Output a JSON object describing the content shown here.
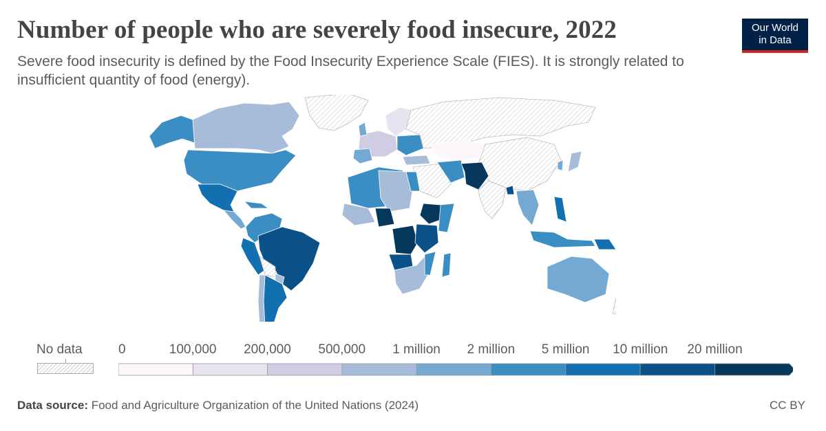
{
  "header": {
    "title": "Number of people who are severely food insecure, 2022",
    "subtitle": "Severe food insecurity is defined by the Food Insecurity Experience Scale (FIES). It is strongly related to insufficient quantity of food (energy)."
  },
  "logo": {
    "line1": "Our World",
    "line2": "in Data"
  },
  "legend": {
    "no_data_label": "No data",
    "bins": [
      {
        "label": "0",
        "color": "#fdf6fb"
      },
      {
        "label": "100,000",
        "color": "#e7e3f0"
      },
      {
        "label": "200,000",
        "color": "#cfcde3"
      },
      {
        "label": "500,000",
        "color": "#a7bcd9"
      },
      {
        "label": "1 million",
        "color": "#73a9d2"
      },
      {
        "label": "2 million",
        "color": "#3b8ec3"
      },
      {
        "label": "5 million",
        "color": "#126fb0"
      },
      {
        "label": "10 million",
        "color": "#0b5189"
      },
      {
        "label": "20 million",
        "color": "#06375d"
      }
    ]
  },
  "footer": {
    "source_label": "Data source:",
    "source_text": "Food and Agriculture Organization of the United Nations (2024)",
    "license": "CC BY"
  },
  "colors": {
    "no_data_hatch": "#d0d0d0",
    "border": "#ffffff",
    "title": "#444444",
    "logo_bg": "#002147",
    "logo_accent": "#ce261e"
  }
}
